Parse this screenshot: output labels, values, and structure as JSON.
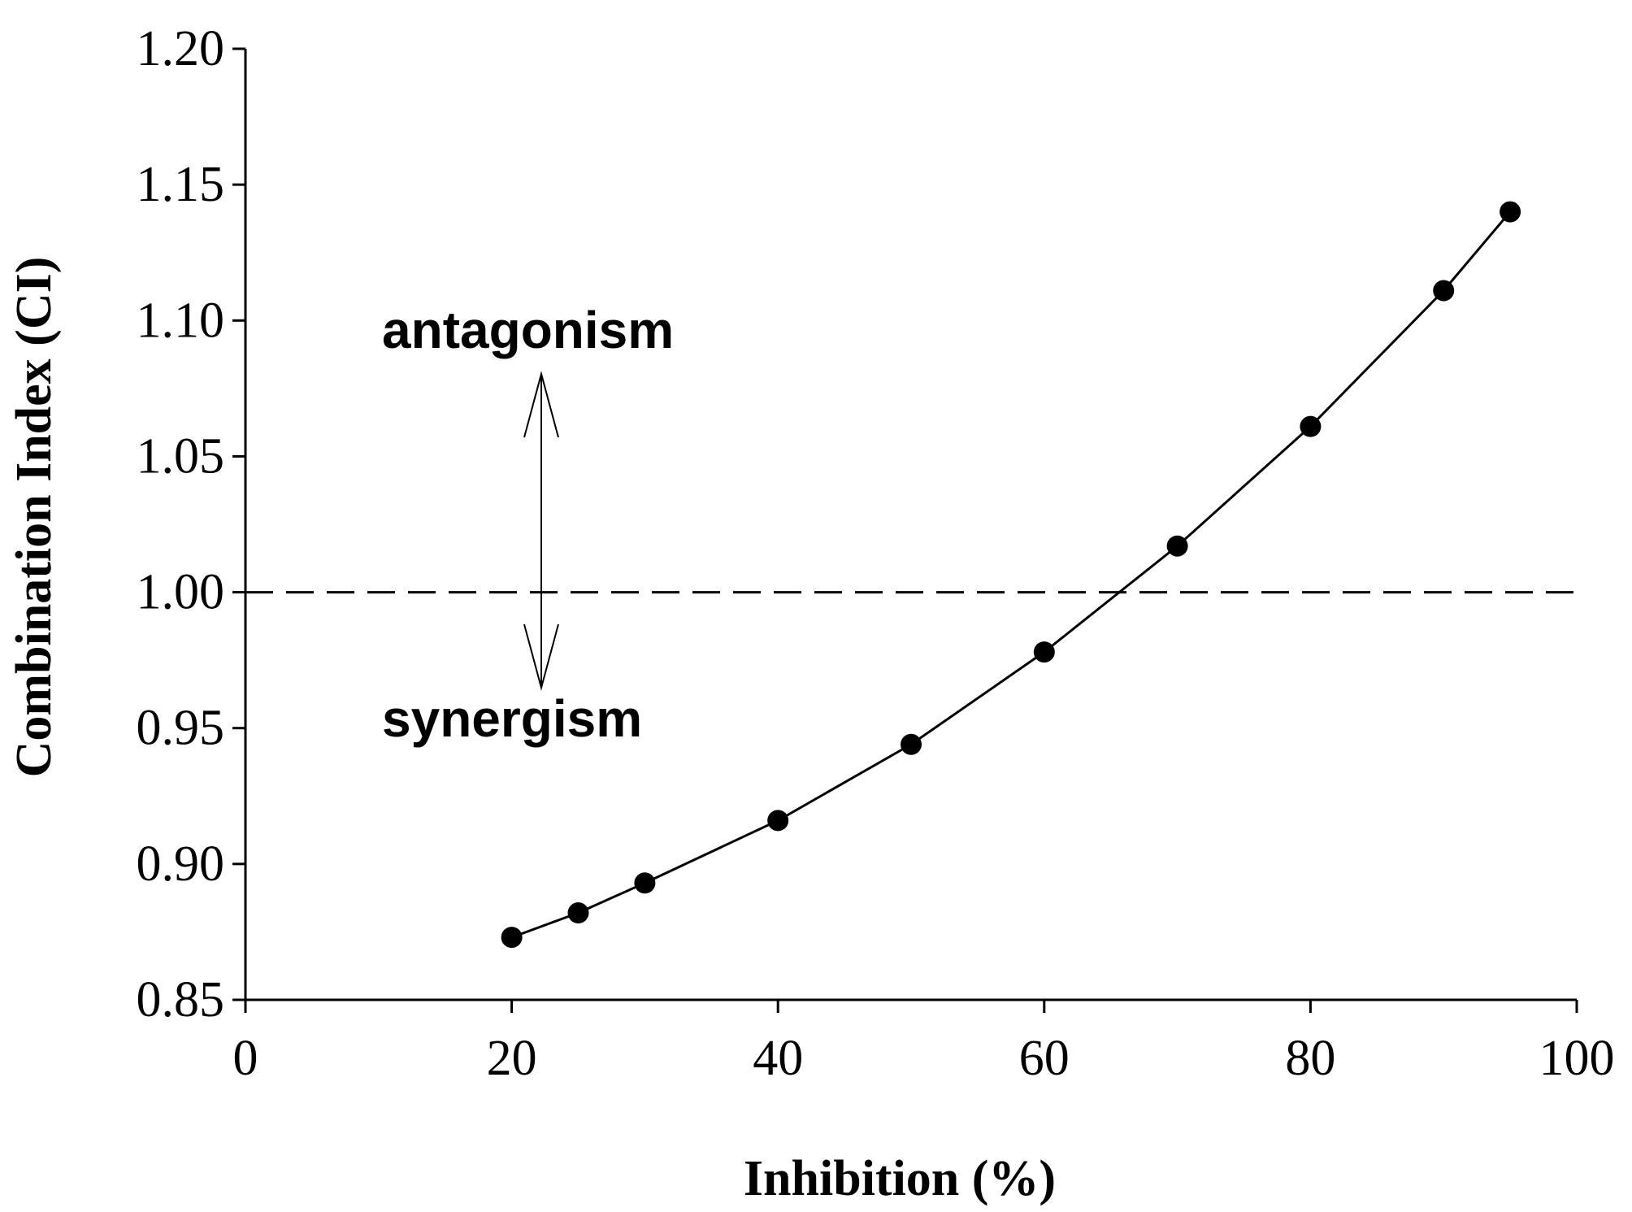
{
  "chart_data": {
    "type": "line",
    "xlabel": "Inhibition (%)",
    "ylabel": "Combination Index (CI)",
    "xlim": [
      0,
      100
    ],
    "ylim": [
      0.85,
      1.2
    ],
    "x_ticks": [
      0,
      20,
      40,
      60,
      80,
      100
    ],
    "y_ticks": [
      "0.85",
      "0.90",
      "0.95",
      "1.00",
      "1.05",
      "1.10",
      "1.15",
      "1.20"
    ],
    "grid": false,
    "legend": "none",
    "reference_line": {
      "y": 1.0,
      "style": "dashed"
    },
    "annotations": {
      "above": "antagonism",
      "below": "synergism"
    },
    "series": [
      {
        "marker": "filled-circle",
        "color": "#000000",
        "points": [
          {
            "x": 20,
            "y": 0.873
          },
          {
            "x": 25,
            "y": 0.882
          },
          {
            "x": 30,
            "y": 0.893
          },
          {
            "x": 40,
            "y": 0.916
          },
          {
            "x": 50,
            "y": 0.944
          },
          {
            "x": 60,
            "y": 0.978
          },
          {
            "x": 70,
            "y": 1.017
          },
          {
            "x": 80,
            "y": 1.061
          },
          {
            "x": 90,
            "y": 1.111
          },
          {
            "x": 95,
            "y": 1.14
          }
        ]
      }
    ]
  }
}
